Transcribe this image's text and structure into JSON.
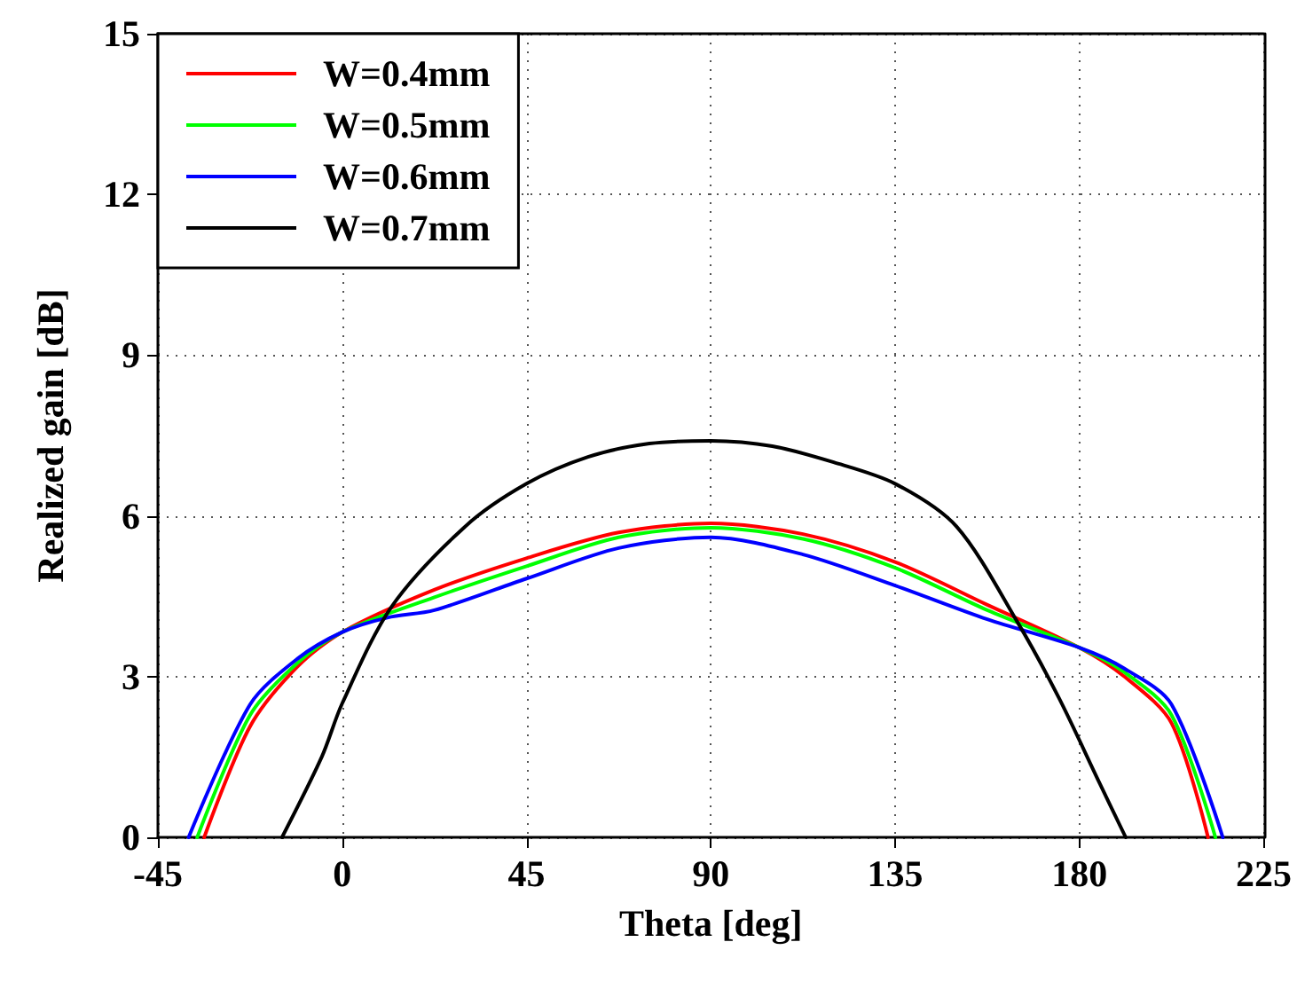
{
  "chart_data": {
    "type": "line",
    "xlabel": "Theta [deg]",
    "ylabel": "Realized gain [dB]",
    "xlim": [
      -45,
      225
    ],
    "xticks": [
      -45,
      0,
      45,
      90,
      135,
      180,
      225
    ],
    "ylim": [
      0,
      15
    ],
    "yticks": [
      0,
      3,
      6,
      9,
      12,
      15
    ],
    "grid": true,
    "legend": "top left",
    "marker": "none",
    "line_style": "solid",
    "series": [
      {
        "name": "W=0.4mm",
        "color": "#ff0000",
        "x": [
          -33.7,
          -22.5,
          -11,
          0,
          22.5,
          45,
          67.5,
          90,
          112.5,
          135,
          157.5,
          180,
          191,
          202.5,
          211.4
        ],
        "values": [
          0,
          2.07,
          3.18,
          3.83,
          4.62,
          5.21,
          5.69,
          5.86,
          5.66,
          5.14,
          4.34,
          3.54,
          3.0,
          2.13,
          0
        ]
      },
      {
        "name": "W=0.5mm",
        "color": "#00ff00",
        "x": [
          -35.4,
          -22.5,
          -11,
          0,
          22.5,
          45,
          67.5,
          90,
          112.5,
          135,
          157.5,
          180,
          191,
          202.5,
          213.2
        ],
        "values": [
          0,
          2.28,
          3.25,
          3.83,
          4.48,
          5.06,
          5.6,
          5.78,
          5.57,
          5.03,
          4.24,
          3.54,
          3.08,
          2.28,
          0
        ]
      },
      {
        "name": "W=0.6mm",
        "color": "#0000ff",
        "x": [
          -37.5,
          -22.5,
          -11,
          0,
          11,
          22.5,
          45,
          67.5,
          90,
          112.5,
          135,
          157.5,
          180,
          191,
          202.5,
          215
        ],
        "values": [
          0,
          2.48,
          3.33,
          3.83,
          4.1,
          4.24,
          4.83,
          5.4,
          5.6,
          5.28,
          4.7,
          4.07,
          3.54,
          3.15,
          2.48,
          0
        ]
      },
      {
        "name": "W=0.7mm",
        "color": "#000000",
        "x": [
          -14.7,
          -5,
          0,
          12,
          30,
          45,
          60,
          75,
          90,
          105,
          120,
          135,
          150,
          165,
          175,
          185,
          191.3
        ],
        "values": [
          0,
          1.5,
          2.5,
          4.3,
          5.8,
          6.6,
          7.1,
          7.35,
          7.4,
          7.3,
          7.0,
          6.6,
          5.8,
          4.0,
          2.6,
          1.0,
          0
        ]
      }
    ]
  }
}
